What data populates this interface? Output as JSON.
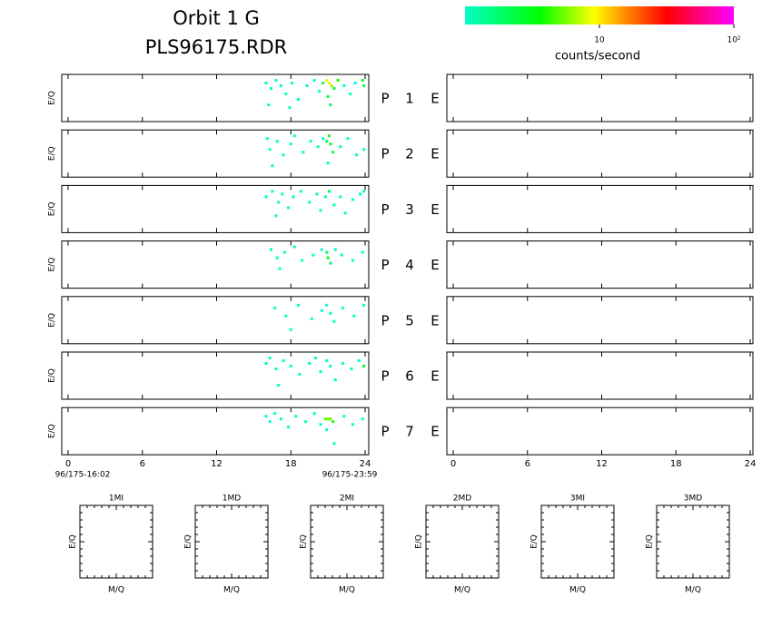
{
  "header": {
    "title": "Orbit 1 G",
    "filename": "PLS96175.RDR"
  },
  "colorbar": {
    "log": true,
    "lim": [
      1,
      100
    ],
    "ticks": [
      {
        "value": 10,
        "label": "10"
      },
      {
        "value": 100,
        "label": "10²"
      }
    ],
    "label": "counts/second"
  },
  "time_axis": {
    "xlim": [
      0,
      24
    ],
    "xticks": [
      0,
      6,
      12,
      18,
      24
    ],
    "start_label": "96/175-16:02",
    "end_label": "96/175-23:59"
  },
  "panels": [
    {
      "ylabel": "E/Q",
      "prefix": "P",
      "number": "1",
      "suffix": "E",
      "cells": [
        [
          16.0,
          13,
          1
        ],
        [
          16.4,
          11,
          1
        ],
        [
          16.8,
          14,
          1
        ],
        [
          17.2,
          12,
          1
        ],
        [
          17.6,
          9,
          1
        ],
        [
          18.1,
          13,
          1
        ],
        [
          18.6,
          7,
          1
        ],
        [
          19.3,
          12,
          1
        ],
        [
          19.9,
          14,
          1
        ],
        [
          20.3,
          10,
          1
        ],
        [
          20.6,
          13,
          2
        ],
        [
          20.9,
          14,
          8
        ],
        [
          21.1,
          13,
          10
        ],
        [
          21.3,
          12,
          6
        ],
        [
          21.5,
          11,
          3
        ],
        [
          21.0,
          8,
          2
        ],
        [
          21.8,
          14,
          4
        ],
        [
          22.3,
          12,
          1
        ],
        [
          22.8,
          9,
          1
        ],
        [
          23.2,
          13,
          1
        ],
        [
          23.8,
          14,
          3
        ],
        [
          23.9,
          12,
          2
        ],
        [
          16.2,
          5,
          1
        ],
        [
          17.9,
          4,
          1
        ],
        [
          21.2,
          5,
          2
        ]
      ]
    },
    {
      "ylabel": "E/Q",
      "prefix": "P",
      "number": "2",
      "suffix": "E",
      "cells": [
        [
          16.1,
          13,
          1
        ],
        [
          16.3,
          9,
          1
        ],
        [
          16.9,
          12,
          1
        ],
        [
          17.4,
          7,
          1
        ],
        [
          18.0,
          11,
          1
        ],
        [
          18.3,
          14,
          1
        ],
        [
          19.0,
          8,
          1
        ],
        [
          19.6,
          12,
          1
        ],
        [
          20.2,
          10,
          1
        ],
        [
          20.6,
          13,
          1
        ],
        [
          20.9,
          12,
          2
        ],
        [
          21.1,
          14,
          4
        ],
        [
          21.2,
          11,
          3
        ],
        [
          21.4,
          8,
          2
        ],
        [
          21.0,
          4,
          1
        ],
        [
          22.0,
          10,
          1
        ],
        [
          22.6,
          13,
          1
        ],
        [
          23.3,
          7,
          1
        ],
        [
          23.9,
          9,
          1
        ],
        [
          16.5,
          3,
          1
        ]
      ]
    },
    {
      "ylabel": "E/Q",
      "prefix": "P",
      "number": "3",
      "suffix": "E",
      "cells": [
        [
          16.0,
          12,
          1
        ],
        [
          16.5,
          14,
          1
        ],
        [
          17.0,
          10,
          1
        ],
        [
          17.3,
          13,
          1
        ],
        [
          17.8,
          8,
          1
        ],
        [
          18.2,
          12,
          1
        ],
        [
          18.8,
          14,
          1
        ],
        [
          19.5,
          10,
          1
        ],
        [
          20.1,
          13,
          1
        ],
        [
          20.4,
          7,
          1
        ],
        [
          20.8,
          12,
          1
        ],
        [
          21.1,
          14,
          2
        ],
        [
          21.5,
          9,
          1
        ],
        [
          22.0,
          12,
          1
        ],
        [
          22.4,
          6,
          1
        ],
        [
          23.0,
          11,
          1
        ],
        [
          23.6,
          13,
          1
        ],
        [
          23.9,
          14,
          1
        ],
        [
          16.8,
          5,
          1
        ]
      ]
    },
    {
      "ylabel": "E/Q",
      "prefix": "P",
      "number": "4",
      "suffix": "E",
      "cells": [
        [
          16.4,
          13,
          1
        ],
        [
          16.9,
          10,
          1
        ],
        [
          17.5,
          12,
          1
        ],
        [
          18.3,
          14,
          1
        ],
        [
          18.9,
          9,
          1
        ],
        [
          19.8,
          11,
          1
        ],
        [
          20.5,
          13,
          1
        ],
        [
          20.9,
          12,
          2
        ],
        [
          21.0,
          10,
          3
        ],
        [
          21.2,
          8,
          2
        ],
        [
          21.6,
          13,
          1
        ],
        [
          22.1,
          11,
          1
        ],
        [
          23.0,
          9,
          1
        ],
        [
          23.8,
          12,
          1
        ],
        [
          17.1,
          6,
          1
        ]
      ]
    },
    {
      "ylabel": "E/Q",
      "prefix": "P",
      "number": "5",
      "suffix": "E",
      "cells": [
        [
          16.7,
          12,
          1
        ],
        [
          17.6,
          9,
          1
        ],
        [
          18.6,
          13,
          1
        ],
        [
          19.7,
          8,
          1
        ],
        [
          20.5,
          11,
          1
        ],
        [
          20.9,
          13,
          1
        ],
        [
          21.2,
          10,
          1
        ],
        [
          21.5,
          7,
          1
        ],
        [
          22.2,
          12,
          1
        ],
        [
          23.1,
          9,
          1
        ],
        [
          23.9,
          13,
          1
        ],
        [
          18.0,
          4,
          1
        ]
      ]
    },
    {
      "ylabel": "E/Q",
      "prefix": "P",
      "number": "6",
      "suffix": "E",
      "cells": [
        [
          16.0,
          12,
          1
        ],
        [
          16.3,
          14,
          1
        ],
        [
          16.8,
          10,
          1
        ],
        [
          17.4,
          13,
          1
        ],
        [
          18.0,
          11,
          1
        ],
        [
          18.7,
          8,
          1
        ],
        [
          19.5,
          12,
          1
        ],
        [
          20.0,
          14,
          1
        ],
        [
          20.4,
          9,
          1
        ],
        [
          20.9,
          13,
          1
        ],
        [
          21.2,
          11,
          1
        ],
        [
          21.6,
          6,
          1
        ],
        [
          22.2,
          12,
          1
        ],
        [
          22.9,
          10,
          1
        ],
        [
          23.5,
          13,
          1
        ],
        [
          23.9,
          11,
          3
        ],
        [
          17.0,
          4,
          1
        ]
      ]
    },
    {
      "ylabel": "E/Q",
      "prefix": "P",
      "number": "7",
      "suffix": "E",
      "cells": [
        [
          16.0,
          13,
          1
        ],
        [
          16.3,
          11,
          1
        ],
        [
          16.7,
          14,
          1
        ],
        [
          17.2,
          12,
          1
        ],
        [
          17.8,
          9,
          1
        ],
        [
          18.4,
          13,
          1
        ],
        [
          19.2,
          11,
          1
        ],
        [
          19.9,
          14,
          1
        ],
        [
          20.4,
          10,
          1
        ],
        [
          20.8,
          12,
          5
        ],
        [
          21.0,
          12,
          6
        ],
        [
          21.2,
          12,
          5
        ],
        [
          21.4,
          11,
          4
        ],
        [
          20.9,
          8,
          1
        ],
        [
          21.5,
          3,
          1
        ],
        [
          22.3,
          13,
          1
        ],
        [
          23.0,
          10,
          1
        ],
        [
          23.8,
          12,
          1
        ]
      ]
    }
  ],
  "mass_panels": [
    {
      "title": "1MI",
      "ylabel": "E/Q",
      "xlabel": "M/Q"
    },
    {
      "title": "1MD",
      "ylabel": "E/Q",
      "xlabel": "M/Q"
    },
    {
      "title": "2MI",
      "ylabel": "E/Q",
      "xlabel": "M/Q"
    },
    {
      "title": "2MD",
      "ylabel": "E/Q",
      "xlabel": "M/Q"
    },
    {
      "title": "3MI",
      "ylabel": "E/Q",
      "xlabel": "M/Q"
    },
    {
      "title": "3MD",
      "ylabel": "E/Q",
      "xlabel": "M/Q"
    }
  ]
}
